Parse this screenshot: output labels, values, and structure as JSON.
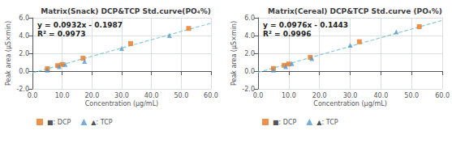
{
  "chart_data": [
    {
      "type": "scatter",
      "title": "Matrix(Snack) DCP&TCP Std.curve(PO₄%)",
      "annotations": [
        "y = 0.0932x - 0.1987",
        "R² = 0.9973"
      ],
      "xlabel": "Concentration (μg/mL)",
      "ylabel": "Peak area (μS×min)",
      "xlim": [
        0,
        60
      ],
      "ylim": [
        -2,
        6
      ],
      "xticks": [
        {
          "value": 0,
          "label": "0.0"
        },
        {
          "value": 10,
          "label": "10.0"
        },
        {
          "value": 20,
          "label": "20.0"
        },
        {
          "value": 30,
          "label": "30.0"
        },
        {
          "value": 40,
          "label": "40.0"
        },
        {
          "value": 50,
          "label": "50.0"
        },
        {
          "value": 60,
          "label": "60.0"
        }
      ],
      "yticks": [
        {
          "value": -2,
          "label": "-2.0"
        },
        {
          "value": 0,
          "label": "0.0"
        },
        {
          "value": 2,
          "label": "2.0"
        },
        {
          "value": 4,
          "label": "4.0"
        },
        {
          "value": 6,
          "label": "6.0"
        }
      ],
      "grid": true,
      "legend": "bottom left",
      "series": [
        {
          "name": "■: DCP",
          "type": "scatter",
          "marker": "square",
          "color": "#E87722",
          "x": [
            5.0,
            8.5,
            10.0,
            17.0,
            33.0,
            52.5
          ],
          "values": [
            0.27,
            0.62,
            0.75,
            1.45,
            3.1,
            4.8
          ]
        },
        {
          "name": "▲: TCP",
          "type": "scatter",
          "marker": "triangle",
          "color": "#5599CC",
          "x": [
            5.0,
            9.0,
            11.0,
            17.5,
            30.0,
            46.0
          ],
          "values": [
            0.12,
            0.5,
            0.75,
            1.1,
            2.55,
            4.0
          ]
        },
        {
          "type": "line",
          "line_style": "dashed",
          "color": "#88CCCC",
          "x": [
            0,
            60
          ],
          "values": [
            -0.1987,
            5.3933
          ]
        }
      ]
    },
    {
      "type": "scatter",
      "title": "Matrix(Cereal) DCP&TCP Std.curve (PO₄%)",
      "annotations": [
        "y = 0.0976x - 0.1443",
        "R² = 0.9996"
      ],
      "xlabel": "Concentration (μg/mL)",
      "ylabel": "Peak area (μS×min)",
      "xlim": [
        0,
        60
      ],
      "ylim": [
        -2,
        6
      ],
      "xticks": [
        {
          "value": 0,
          "label": "0.0"
        },
        {
          "value": 10,
          "label": "10.0"
        },
        {
          "value": 20,
          "label": "20.0"
        },
        {
          "value": 30,
          "label": "30.0"
        },
        {
          "value": 40,
          "label": "40.0"
        },
        {
          "value": 50,
          "label": "50.0"
        },
        {
          "value": 60,
          "label": "60.0"
        }
      ],
      "yticks": [
        {
          "value": -2,
          "label": "-2.0"
        },
        {
          "value": 0,
          "label": "0.0"
        },
        {
          "value": 2,
          "label": "2.0"
        },
        {
          "value": 4,
          "label": "4.0"
        },
        {
          "value": 6,
          "label": "6.0"
        }
      ],
      "grid": true,
      "legend": "bottom left",
      "series": [
        {
          "name": "■: DCP",
          "type": "scatter",
          "marker": "square",
          "color": "#E87722",
          "x": [
            5.0,
            8.5,
            10.0,
            17.0,
            33.0,
            52.5
          ],
          "values": [
            0.3,
            0.65,
            0.8,
            1.55,
            3.3,
            5.0
          ]
        },
        {
          "name": "▲: TCP",
          "type": "scatter",
          "marker": "triangle",
          "color": "#5599CC",
          "x": [
            5.0,
            9.0,
            11.0,
            17.5,
            30.0,
            45.0
          ],
          "values": [
            0.12,
            0.5,
            0.85,
            1.4,
            2.9,
            4.4
          ]
        },
        {
          "type": "line",
          "line_style": "dashed",
          "color": "#88CCCC",
          "x": [
            0,
            60
          ],
          "values": [
            -0.1443,
            5.7117
          ]
        }
      ]
    }
  ]
}
